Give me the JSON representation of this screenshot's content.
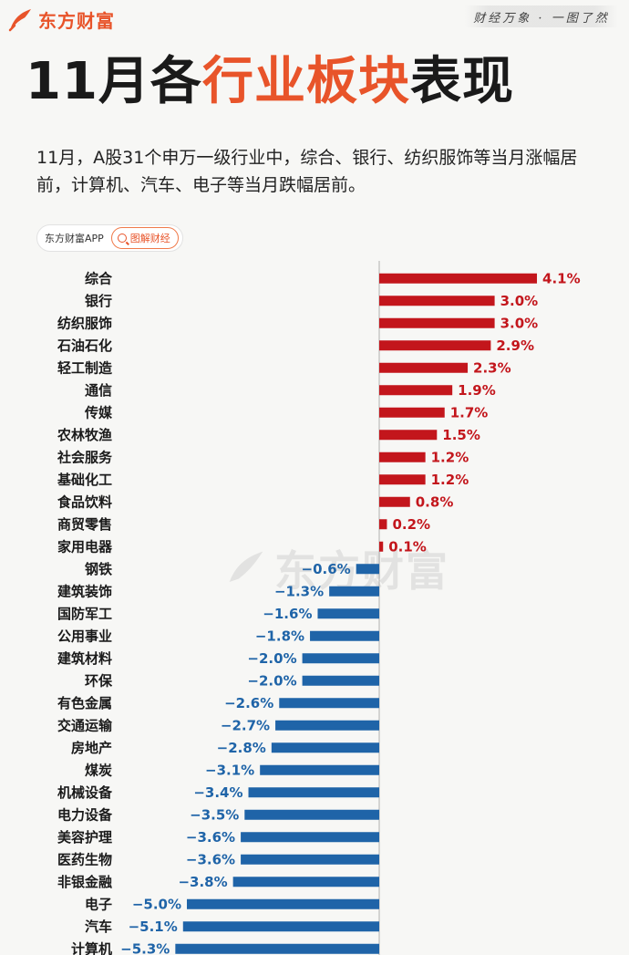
{
  "header": {
    "logo_text": "东方财富",
    "logo_icon": "eastmoney-feather-icon",
    "slogan": "财经万象 · 一图了然"
  },
  "title": {
    "part1": "11月各",
    "highlight": "行业板块",
    "part2": "表现"
  },
  "subtitle": "11月，A股31个申万一级行业中，综合、银行、纺织服饰等当月涨幅居前，计算机、汽车、电子等当月跌幅居前。",
  "source_pill": {
    "label": "东方财富APP",
    "button_label": "图解财经",
    "button_icon": "search-icon"
  },
  "watermark": {
    "text": "东方财富"
  },
  "colors": {
    "accent": "#e8542a",
    "positive": "#c3161c",
    "negative": "#1f64a8",
    "axis": "#b0b0b0"
  },
  "chart_data": {
    "type": "bar",
    "orientation": "horizontal",
    "categories": [
      "综合",
      "银行",
      "纺织服饰",
      "石油石化",
      "轻工制造",
      "通信",
      "传媒",
      "农林牧渔",
      "社会服务",
      "基础化工",
      "食品饮料",
      "商贸零售",
      "家用电器",
      "钢铁",
      "建筑装饰",
      "国防军工",
      "公用事业",
      "建筑材料",
      "环保",
      "有色金属",
      "交通运输",
      "房地产",
      "煤炭",
      "机械设备",
      "电力设备",
      "美容护理",
      "医药生物",
      "非银金融",
      "电子",
      "汽车",
      "计算机"
    ],
    "values": [
      4.1,
      3.0,
      3.0,
      2.9,
      2.3,
      1.9,
      1.7,
      1.5,
      1.2,
      1.2,
      0.8,
      0.2,
      0.1,
      -0.6,
      -1.3,
      -1.6,
      -1.8,
      -2.0,
      -2.0,
      -2.6,
      -2.7,
      -2.8,
      -3.1,
      -3.4,
      -3.5,
      -3.6,
      -3.6,
      -3.8,
      -5.0,
      -5.1,
      -5.3
    ],
    "labels": [
      "4.1%",
      "3.0%",
      "3.0%",
      "2.9%",
      "2.3%",
      "1.9%",
      "1.7%",
      "1.5%",
      "1.2%",
      "1.2%",
      "0.8%",
      "0.2%",
      "0.1%",
      "−0.6%",
      "−1.3%",
      "−1.6%",
      "−1.8%",
      "−2.0%",
      "−2.0%",
      "−2.6%",
      "−2.7%",
      "−2.8%",
      "−3.1%",
      "−3.4%",
      "−3.5%",
      "−3.6%",
      "−3.6%",
      "−3.8%",
      "−5.0%",
      "−5.1%",
      "−5.3%"
    ],
    "unit": "%",
    "xlim": [
      -5.3,
      4.1
    ],
    "grid": false,
    "legend": "none"
  }
}
